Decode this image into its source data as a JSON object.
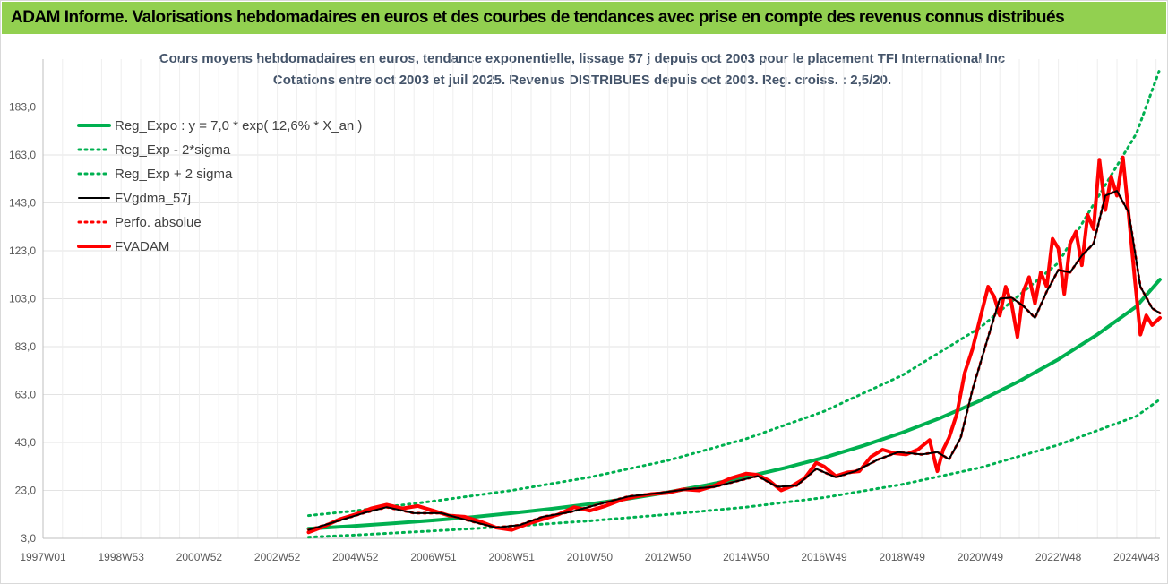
{
  "banner": "ADAM Informe. Valorisations hebdomadaires en euros et des courbes de tendances avec prise en compte des revenus connus distribués",
  "colors": {
    "banner_bg": "#92d050",
    "reg": "#00b050",
    "fvgdma": "#000000",
    "fvadam": "#ff0000",
    "perfo": "#ff0000"
  },
  "chart_data": {
    "type": "line",
    "title": "Cours moyens hebdomadaires en euros, tendance exponentielle, lissage 57 j depuis oct 2003 pour le placement TFI International Inc",
    "subtitle": "Cotations entre oct 2003 et juil 2025. Revenus DISTRIBUES depuis oct 2003. Reg. croiss. : 2,5/20.",
    "xlabel": "",
    "ylabel": "",
    "x_range": [
      1997.0,
      2025.6
    ],
    "ylim": [
      3.0,
      203.0
    ],
    "y_ticks": [
      "3,0",
      "23,0",
      "43,0",
      "63,0",
      "83,0",
      "103,0",
      "123,0",
      "143,0",
      "163,0",
      "183,0"
    ],
    "x_ticks": [
      {
        "label": "1997W01",
        "x": 1997.0
      },
      {
        "label": "1998W53",
        "x": 1999.0
      },
      {
        "label": "2000W52",
        "x": 2001.0
      },
      {
        "label": "2002W52",
        "x": 2003.0
      },
      {
        "label": "2004W52",
        "x": 2005.0
      },
      {
        "label": "2006W51",
        "x": 2007.0
      },
      {
        "label": "2008W51",
        "x": 2009.0
      },
      {
        "label": "2010W50",
        "x": 2011.0
      },
      {
        "label": "2012W50",
        "x": 2013.0
      },
      {
        "label": "2014W50",
        "x": 2015.0
      },
      {
        "label": "2016W49",
        "x": 2017.0
      },
      {
        "label": "2018W49",
        "x": 2019.0
      },
      {
        "label": "2020W49",
        "x": 2021.0
      },
      {
        "label": "2022W48",
        "x": 2023.0
      },
      {
        "label": "2024W48",
        "x": 2025.0
      }
    ],
    "grid": true,
    "legend_position": "top-left",
    "series": [
      {
        "name": "Reg_Expo : y = 7,0 * exp( 12,6% *  X_an )",
        "style": "solid-thick",
        "color": "#00b050",
        "x": [
          2003.8,
          2005.0,
          2006.0,
          2007.0,
          2008.0,
          2009.0,
          2010.0,
          2011.0,
          2012.0,
          2013.0,
          2014.0,
          2015.0,
          2016.0,
          2017.0,
          2018.0,
          2019.0,
          2020.0,
          2021.0,
          2022.0,
          2023.0,
          2024.0,
          2025.0,
          2025.6
        ],
        "values": [
          7.0,
          8.2,
          9.3,
          10.5,
          11.9,
          13.5,
          15.3,
          17.3,
          19.6,
          22.2,
          25.2,
          28.6,
          32.4,
          36.7,
          41.6,
          47.1,
          53.4,
          60.5,
          68.6,
          77.7,
          88.1,
          99.8,
          111.0
        ]
      },
      {
        "name": "Reg_Exp - 2*sigma",
        "style": "dotted",
        "color": "#00b050",
        "x": [
          2003.8,
          2005.0,
          2007.0,
          2009.0,
          2011.0,
          2013.0,
          2015.0,
          2017.0,
          2019.0,
          2021.0,
          2023.0,
          2025.0,
          2025.6
        ],
        "values": [
          3.5,
          4.4,
          6.1,
          8.0,
          10.3,
          13.0,
          16.0,
          20.0,
          25.5,
          32.5,
          42.0,
          54.0,
          61.0
        ]
      },
      {
        "name": "Reg_Exp + 2 sigma",
        "style": "dotted",
        "color": "#00b050",
        "x": [
          2003.8,
          2005.0,
          2007.0,
          2009.0,
          2011.0,
          2013.0,
          2015.0,
          2017.0,
          2019.0,
          2021.0,
          2023.0,
          2025.0,
          2025.6
        ],
        "values": [
          12.5,
          14.5,
          18.5,
          23.0,
          28.5,
          35.5,
          44.5,
          56.0,
          71.0,
          91.0,
          118.0,
          172.0,
          199.0
        ]
      },
      {
        "name": "FVgdma_57j",
        "style": "solid",
        "color": "#000000",
        "x": [
          2003.8,
          2004.5,
          2005.2,
          2005.8,
          2006.5,
          2007.2,
          2008.0,
          2008.6,
          2009.2,
          2009.8,
          2010.5,
          2011.3,
          2012.0,
          2012.8,
          2013.5,
          2014.2,
          2014.8,
          2015.3,
          2015.8,
          2016.3,
          2016.8,
          2017.3,
          2017.8,
          2018.4,
          2018.9,
          2019.5,
          2019.9,
          2020.2,
          2020.5,
          2020.8,
          2021.2,
          2021.5,
          2021.8,
          2022.1,
          2022.4,
          2022.7,
          2023.0,
          2023.3,
          2023.6,
          2023.9,
          2024.2,
          2024.5,
          2024.8,
          2025.1,
          2025.4,
          2025.6
        ],
        "values": [
          6.5,
          10.0,
          13.5,
          16.0,
          13.5,
          13.5,
          10.0,
          7.5,
          8.5,
          12.0,
          14.0,
          17.5,
          20.5,
          22.0,
          23.5,
          24.5,
          27.0,
          29.0,
          24.5,
          25.0,
          32.0,
          28.5,
          31.0,
          36.0,
          39.0,
          38.0,
          39.0,
          36.0,
          45.0,
          65.0,
          87.0,
          103.0,
          103.5,
          100.0,
          95.0,
          106.0,
          115.0,
          114.0,
          121.0,
          126.0,
          146.0,
          148.0,
          139.0,
          108.0,
          99.0,
          97.0
        ]
      },
      {
        "name": "Perfo. absolue",
        "style": "dotted",
        "color": "#ff0000",
        "x": [
          2003.8,
          2004.5,
          2005.2,
          2005.8,
          2006.5,
          2007.2,
          2008.0,
          2008.6,
          2009.2,
          2009.8,
          2010.5,
          2011.3,
          2012.0,
          2012.8,
          2013.5,
          2014.2,
          2014.8,
          2015.3,
          2015.8,
          2016.3,
          2016.8,
          2017.3,
          2017.8,
          2018.4,
          2018.9,
          2019.5,
          2019.9,
          2020.2,
          2020.5,
          2020.8,
          2021.2,
          2021.5,
          2021.8,
          2022.1,
          2022.4,
          2022.7,
          2023.0,
          2023.3,
          2023.6,
          2023.9,
          2024.2,
          2024.5,
          2024.8,
          2025.1,
          2025.4,
          2025.6
        ],
        "values": [
          6.5,
          10.0,
          13.5,
          16.0,
          13.5,
          13.5,
          10.0,
          7.5,
          8.5,
          12.0,
          14.0,
          17.5,
          20.5,
          22.0,
          23.5,
          24.5,
          27.0,
          29.0,
          24.5,
          25.0,
          32.0,
          28.5,
          31.0,
          36.0,
          39.0,
          38.0,
          39.0,
          36.0,
          45.0,
          65.0,
          87.0,
          103.0,
          103.5,
          100.0,
          95.0,
          106.0,
          115.0,
          114.0,
          121.0,
          126.0,
          146.0,
          148.0,
          139.0,
          108.0,
          99.0,
          97.0
        ]
      },
      {
        "name": "FVADAM",
        "style": "solid-thick",
        "color": "#ff0000",
        "x": [
          2003.8,
          2004.2,
          2004.6,
          2005.0,
          2005.4,
          2005.8,
          2006.2,
          2006.6,
          2007.0,
          2007.4,
          2007.8,
          2008.2,
          2008.6,
          2009.0,
          2009.4,
          2009.8,
          2010.2,
          2010.6,
          2011.0,
          2011.4,
          2011.8,
          2012.2,
          2012.6,
          2013.0,
          2013.4,
          2013.8,
          2014.2,
          2014.6,
          2015.0,
          2015.3,
          2015.6,
          2015.9,
          2016.2,
          2016.5,
          2016.8,
          2017.0,
          2017.3,
          2017.6,
          2017.9,
          2018.2,
          2018.5,
          2018.8,
          2019.1,
          2019.4,
          2019.7,
          2019.9,
          2020.05,
          2020.2,
          2020.4,
          2020.6,
          2020.8,
          2021.0,
          2021.2,
          2021.35,
          2021.5,
          2021.65,
          2021.8,
          2021.95,
          2022.1,
          2022.25,
          2022.4,
          2022.55,
          2022.7,
          2022.85,
          2023.0,
          2023.15,
          2023.3,
          2023.45,
          2023.6,
          2023.75,
          2023.9,
          2024.05,
          2024.2,
          2024.35,
          2024.5,
          2024.65,
          2024.8,
          2024.95,
          2025.1,
          2025.25,
          2025.4,
          2025.6
        ],
        "values": [
          5.5,
          8.0,
          11.0,
          13.0,
          15.5,
          17.0,
          15.5,
          16.5,
          14.5,
          12.5,
          12.0,
          10.0,
          7.5,
          6.5,
          9.0,
          11.0,
          13.0,
          16.0,
          14.5,
          16.5,
          19.0,
          20.5,
          21.5,
          22.0,
          23.5,
          23.0,
          25.0,
          28.0,
          30.0,
          29.5,
          27.0,
          23.0,
          25.0,
          28.0,
          34.5,
          33.0,
          29.0,
          30.5,
          31.0,
          37.0,
          40.0,
          38.5,
          38.0,
          40.0,
          44.0,
          31.0,
          40.0,
          45.0,
          55.0,
          72.0,
          82.0,
          95.0,
          108.0,
          104.0,
          96.0,
          108.0,
          101.0,
          87.0,
          106.0,
          112.0,
          101.0,
          114.0,
          108.0,
          128.0,
          124.0,
          105.0,
          126.0,
          131.0,
          117.0,
          138.0,
          132.0,
          161.0,
          140.0,
          154.0,
          146.0,
          162.0,
          138.0,
          112.0,
          88.0,
          96.0,
          92.0,
          95.0
        ]
      }
    ]
  }
}
